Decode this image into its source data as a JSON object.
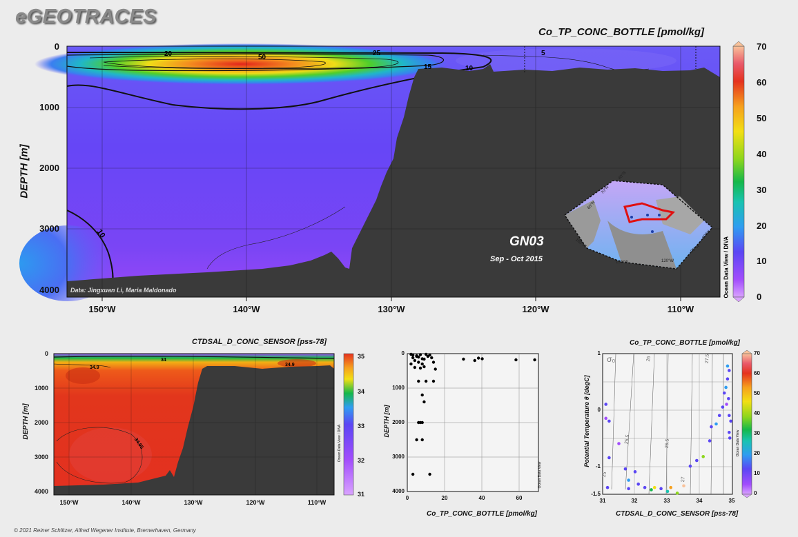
{
  "logo": "eGEOTRACES",
  "copyright": "© 2021 Reiner Schlitzer, Alfred Wegener Institute, Bremerhaven, Germany",
  "colors": {
    "bathymetry": "#3a3a3a",
    "background": "#ececec"
  },
  "main": {
    "title": "Co_TP_CONC_BOTTLE [pmol/kg]",
    "ylabel": "DEPTH [m]",
    "data_credit": "Data: Jingxuan Li, Maria Maldonado",
    "section": "GN03",
    "dates": "Sep - Oct 2015",
    "odv": "Ocean Data View / DIVA",
    "contour_labels": [
      "20",
      "50",
      "25",
      "5",
      "15",
      "10",
      "10"
    ],
    "inset_map": {
      "lat_labels": [
        "80°N",
        "70°N",
        "60°N"
      ],
      "lon_labels": [
        "180°W",
        "150°W",
        "120°W",
        "90°W",
        "60°W"
      ]
    }
  },
  "chart_data": [
    {
      "type": "heatmap",
      "title": "Co_TP_CONC_BOTTLE [pmol/kg]",
      "xlabel": "",
      "ylabel": "DEPTH [m]",
      "x_ticks": [
        "150°W",
        "140°W",
        "130°W",
        "120°W",
        "110°W"
      ],
      "y_ticks": [
        "0",
        "1000",
        "2000",
        "3000",
        "4000"
      ],
      "xlim": [
        -152.5,
        -107
      ],
      "ylim": [
        0,
        4000
      ],
      "colorbar": {
        "ticks": [
          "70",
          "60",
          "50",
          "40",
          "30",
          "20",
          "10",
          "0"
        ],
        "min": 0,
        "max": 70
      },
      "contour_levels": [
        5,
        10,
        15,
        20,
        25,
        50
      ]
    },
    {
      "type": "heatmap",
      "title": "CTDSAL_D_CONC_SENSOR [pss-78]",
      "xlabel": "",
      "ylabel": "DEPTH [m]",
      "x_ticks": [
        "150°W",
        "140°W",
        "130°W",
        "120°W",
        "110°W"
      ],
      "y_ticks": [
        "0",
        "1000",
        "2000",
        "3000",
        "4000"
      ],
      "xlim": [
        -152.5,
        -107
      ],
      "ylim": [
        0,
        4000
      ],
      "colorbar": {
        "ticks": [
          "35",
          "34",
          "33",
          "32",
          "31"
        ],
        "min": 31,
        "max": 35
      },
      "contour_labels": [
        "34.9",
        "34",
        "34.9",
        "34.95"
      ],
      "odv": "Ocean Data View / DIVA"
    },
    {
      "type": "scatter",
      "title": "",
      "xlabel": "Co_TP_CONC_BOTTLE [pmol/kg]",
      "ylabel": "DEPTH [m]",
      "x_ticks": [
        "0",
        "20",
        "40",
        "60"
      ],
      "y_ticks": [
        "0",
        "1000",
        "2000",
        "3000",
        "4000"
      ],
      "xlim": [
        0,
        70
      ],
      "ylim": [
        0,
        4000
      ],
      "odv": "Ocean Data View",
      "points": [
        [
          2,
          20
        ],
        [
          3,
          40
        ],
        [
          5,
          60
        ],
        [
          6,
          100
        ],
        [
          7,
          30
        ],
        [
          8,
          150
        ],
        [
          10,
          20
        ],
        [
          12,
          40
        ],
        [
          4,
          200
        ],
        [
          6,
          250
        ],
        [
          8,
          300
        ],
        [
          2,
          300
        ],
        [
          4,
          400
        ],
        [
          7,
          420
        ],
        [
          9,
          380
        ],
        [
          11,
          80
        ],
        [
          14,
          250
        ],
        [
          15,
          450
        ],
        [
          5,
          80
        ],
        [
          3,
          120
        ],
        [
          9,
          160
        ],
        [
          13,
          120
        ],
        [
          30,
          160
        ],
        [
          36,
          200
        ],
        [
          38,
          130
        ],
        [
          40,
          150
        ],
        [
          58,
          180
        ],
        [
          68,
          180
        ],
        [
          6,
          800
        ],
        [
          10,
          800
        ],
        [
          14,
          800
        ],
        [
          8,
          1200
        ],
        [
          9,
          1400
        ],
        [
          6,
          2000
        ],
        [
          7,
          2000
        ],
        [
          8,
          2000
        ],
        [
          5,
          2500
        ],
        [
          8,
          2500
        ],
        [
          3,
          3500
        ],
        [
          12,
          3500
        ]
      ]
    },
    {
      "type": "scatter",
      "title": "Co_TP_CONC_BOTTLE [pmol/kg]",
      "xlabel": "CTDSAL_D_CONC_SENSOR [pss-78]",
      "ylabel": "Potential Temperature θ [degC]",
      "x_ticks": [
        "31",
        "32",
        "33",
        "34",
        "35"
      ],
      "y_ticks": [
        "1",
        "0.5",
        "0",
        "-0.5",
        "-1",
        "-1.5"
      ],
      "xlim": [
        31,
        35
      ],
      "ylim": [
        -1.5,
        1
      ],
      "colorbar": {
        "ticks": [
          "70",
          "60",
          "50",
          "40",
          "30",
          "20",
          "10",
          "0"
        ],
        "min": 0,
        "max": 70
      },
      "isopycnal_labels": [
        "σ₀",
        "25",
        "25.5",
        "26",
        "26.5",
        "27",
        "27.5"
      ],
      "odv": "Ocean Data View",
      "points": [
        [
          31.1,
          0.1,
          8
        ],
        [
          31.2,
          -0.2,
          6
        ],
        [
          31.1,
          -0.15,
          5
        ],
        [
          31.2,
          -0.85,
          10
        ],
        [
          31.15,
          -1.38,
          9
        ],
        [
          31.5,
          -0.6,
          5
        ],
        [
          31.7,
          -1.05,
          10
        ],
        [
          31.8,
          -1.25,
          14
        ],
        [
          31.8,
          -1.4,
          12
        ],
        [
          32.0,
          -1.1,
          6
        ],
        [
          32.1,
          -1.32,
          8
        ],
        [
          32.3,
          -1.38,
          12
        ],
        [
          32.5,
          -1.42,
          30
        ],
        [
          32.6,
          -1.38,
          45
        ],
        [
          32.8,
          -1.4,
          6
        ],
        [
          33.0,
          -1.45,
          22
        ],
        [
          33.1,
          -1.38,
          50
        ],
        [
          33.3,
          -1.48,
          36
        ],
        [
          33.5,
          -1.35,
          62
        ],
        [
          33.7,
          -1.0,
          8
        ],
        [
          33.9,
          -0.9,
          12
        ],
        [
          34.1,
          -0.83,
          36
        ],
        [
          34.3,
          -0.55,
          10
        ],
        [
          34.35,
          -0.3,
          6
        ],
        [
          34.5,
          -0.25,
          14
        ],
        [
          34.6,
          -0.1,
          8
        ],
        [
          34.7,
          0.05,
          10
        ],
        [
          34.75,
          0.3,
          6
        ],
        [
          34.8,
          0.4,
          16
        ],
        [
          34.85,
          0.55,
          8
        ],
        [
          34.9,
          0.7,
          10
        ],
        [
          34.85,
          0.78,
          18
        ],
        [
          34.9,
          -0.1,
          9
        ],
        [
          34.92,
          -0.5,
          12
        ],
        [
          34.95,
          -0.2,
          6
        ],
        [
          34.9,
          -0.4,
          8
        ],
        [
          34.88,
          0.2,
          10
        ],
        [
          34.82,
          0.1,
          5
        ]
      ]
    }
  ]
}
